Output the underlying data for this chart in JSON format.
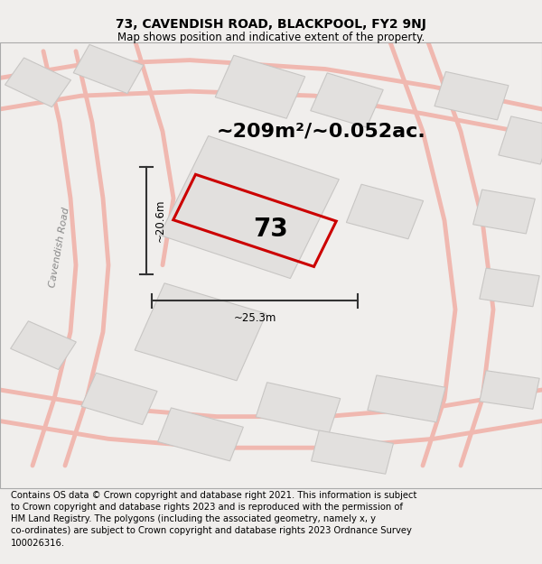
{
  "title_line1": "73, CAVENDISH ROAD, BLACKPOOL, FY2 9NJ",
  "title_line2": "Map shows position and indicative extent of the property.",
  "area_label": "~209m²/~0.052ac.",
  "number_label": "73",
  "dim_width": "~25.3m",
  "dim_height": "~20.6m",
  "road_label": "Cavendish Road",
  "footer_text": "Contains OS data © Crown copyright and database right 2021. This information is subject\nto Crown copyright and database rights 2023 and is reproduced with the permission of\nHM Land Registry. The polygons (including the associated geometry, namely x, y\nco-ordinates) are subject to Crown copyright and database rights 2023 Ordnance Survey\n100026316.",
  "bg_color": "#f0eeec",
  "map_bg": "#f0eeec",
  "building_fill": "#e2e0de",
  "building_edge": "#c8c6c4",
  "road_line_color": "#f0b8b0",
  "main_plot_color": "#cc0000",
  "dim_line_color": "#333333",
  "title_fontsize": 10,
  "subtitle_fontsize": 8.5,
  "area_fontsize": 16,
  "number_fontsize": 20,
  "footer_fontsize": 7.2,
  "road_label_fontsize": 8
}
